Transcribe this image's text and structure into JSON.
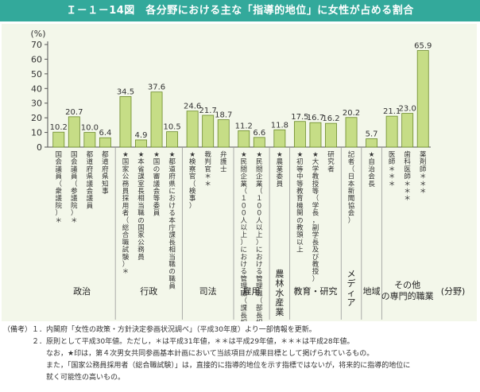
{
  "title": "Ｉ－１－14図　各分野における主な「指導的地位」に女性が占める割合",
  "chart_data": {
    "type": "bar",
    "title": "Ｉ－１－14図　各分野における主な「指導的地位」に女性が占める割合",
    "ylabel": "(%)",
    "xlabel": "(分野)",
    "ylim": [
      0,
      70
    ],
    "yticks": [
      "0",
      "10",
      "20",
      "30",
      "40",
      "50",
      "60",
      "70"
    ],
    "grid": false,
    "bar_color": "#c6dd86",
    "bar_edge_color": "#6b8a2a",
    "categories": [
      "国会議員（衆議院）＊",
      "国会議員（参議院）＊",
      "都道府県議会議員",
      "都道府県知事",
      "★国家公務員採用者（総合職試験）＊",
      "★本省課室長相当職の国家公務員",
      "★国の審議会等委員",
      "★都道府県における本庁課長相当職の職員",
      "★検察官（検事）",
      "裁判官＊＊",
      "弁護士",
      "★民間企業（１００人以上）における管理職（課長相当職）",
      "★民間企業（１００人以上）における管理職（部長相当職）",
      "★農業委員",
      "★初等中等教育機関の教頭以上",
      "★大学教授等（学長，副学長及び教授）",
      "研究者",
      "記者（日本新聞協会）",
      "★自治会長",
      "医師＊＊＊",
      "歯科医師＊＊＊",
      "薬剤師＊＊＊"
    ],
    "values": [
      10.2,
      20.7,
      10.0,
      6.4,
      34.5,
      4.9,
      37.6,
      10.5,
      24.6,
      21.7,
      18.7,
      11.2,
      6.6,
      11.8,
      17.5,
      16.7,
      16.2,
      20.2,
      5.7,
      21.1,
      23.0,
      65.9
    ],
    "value_labels": [
      "10.2",
      "20.7",
      "10.0",
      "6.4",
      "34.5",
      "4.9",
      "37.6",
      "10.5",
      "24.6",
      "21.7",
      "18.7",
      "11.2",
      "6.6",
      "11.8",
      "17.5",
      "16.7",
      "16.2",
      "20.2",
      "5.7",
      "21.1",
      "23.0",
      "65.9"
    ],
    "groups": [
      {
        "name": "政治",
        "count": 4
      },
      {
        "name": "行政",
        "count": 4
      },
      {
        "name": "司法",
        "count": 3
      },
      {
        "name": "雇用",
        "count": 2
      },
      {
        "name": "農林水産業",
        "count": 1
      },
      {
        "name": "教育・研究",
        "count": 3
      },
      {
        "name": "メディア",
        "count": 1
      },
      {
        "name": "地域",
        "count": 1
      },
      {
        "name": "その他の専門的職業",
        "count": 3
      }
    ]
  },
  "notes": [
    "（備考）１．内閣府「女性の政策・方針決定参画状況調べ」（平成30年度）より一部情報を更新。",
    "　　　　２．原則として平成30年値。ただし，＊は平成31年値，＊＊は平成29年値，＊＊＊は平成28年値。",
    "　　　　　　なお，★印は，第４次男女共同参画基本計画において当該項目が成果目標として掲げられているもの。",
    "　　　　　　また，「国家公務員採用者（総合職試験）」は，直接的に指導的地位を示す指標ではないが，将来的に指導的地位に",
    "　　　　　　就く可能性の高いもの。"
  ]
}
